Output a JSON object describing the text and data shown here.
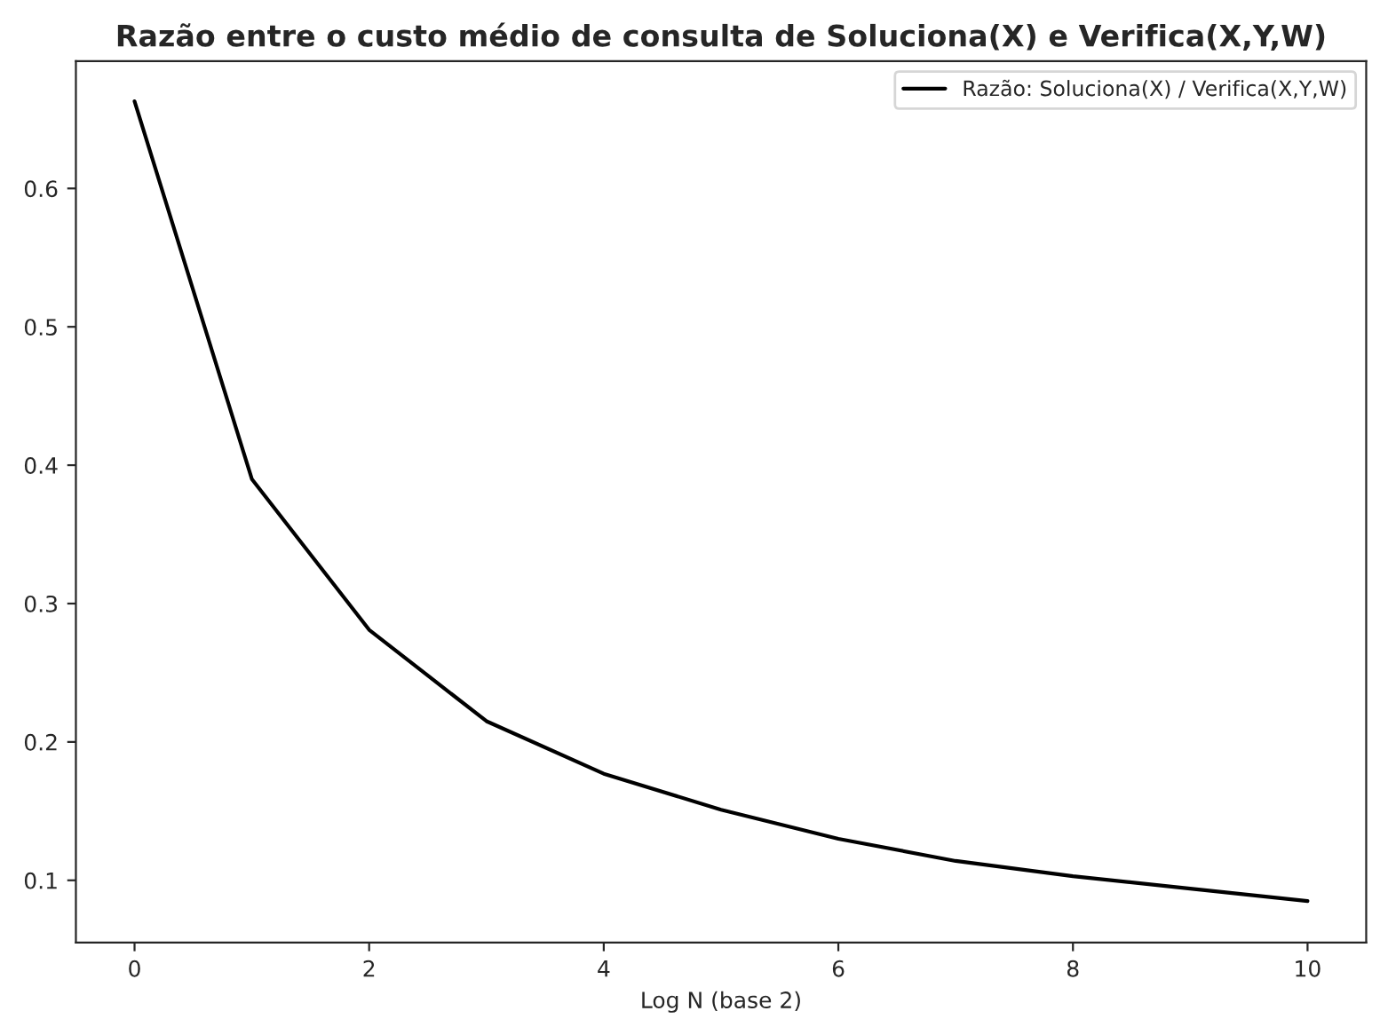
{
  "chart_data": {
    "type": "line",
    "title": "Razão entre o custo médio de consulta de Soluciona(X) e Verifica(X,Y,W)",
    "xlabel": "Log N (base 2)",
    "x": [
      0,
      1,
      2,
      3,
      4,
      5,
      6,
      7,
      8,
      9,
      10
    ],
    "series": [
      {
        "name": "Razão: Soluciona(X) / Verifica(X,Y,W)",
        "color": "#000000",
        "values": [
          0.663,
          0.39,
          0.281,
          0.215,
          0.177,
          0.151,
          0.13,
          0.114,
          0.103,
          0.094,
          0.085
        ]
      }
    ],
    "xlim": [
      -0.5,
      10.5
    ],
    "ylim": [
      0.055,
      0.692
    ],
    "xticks": [
      0,
      2,
      4,
      6,
      8,
      10
    ],
    "yticks": [
      0.1,
      0.2,
      0.3,
      0.4,
      0.5,
      0.6
    ],
    "grid": false,
    "legend": "top right",
    "marker": "none",
    "line_style": "solid"
  }
}
